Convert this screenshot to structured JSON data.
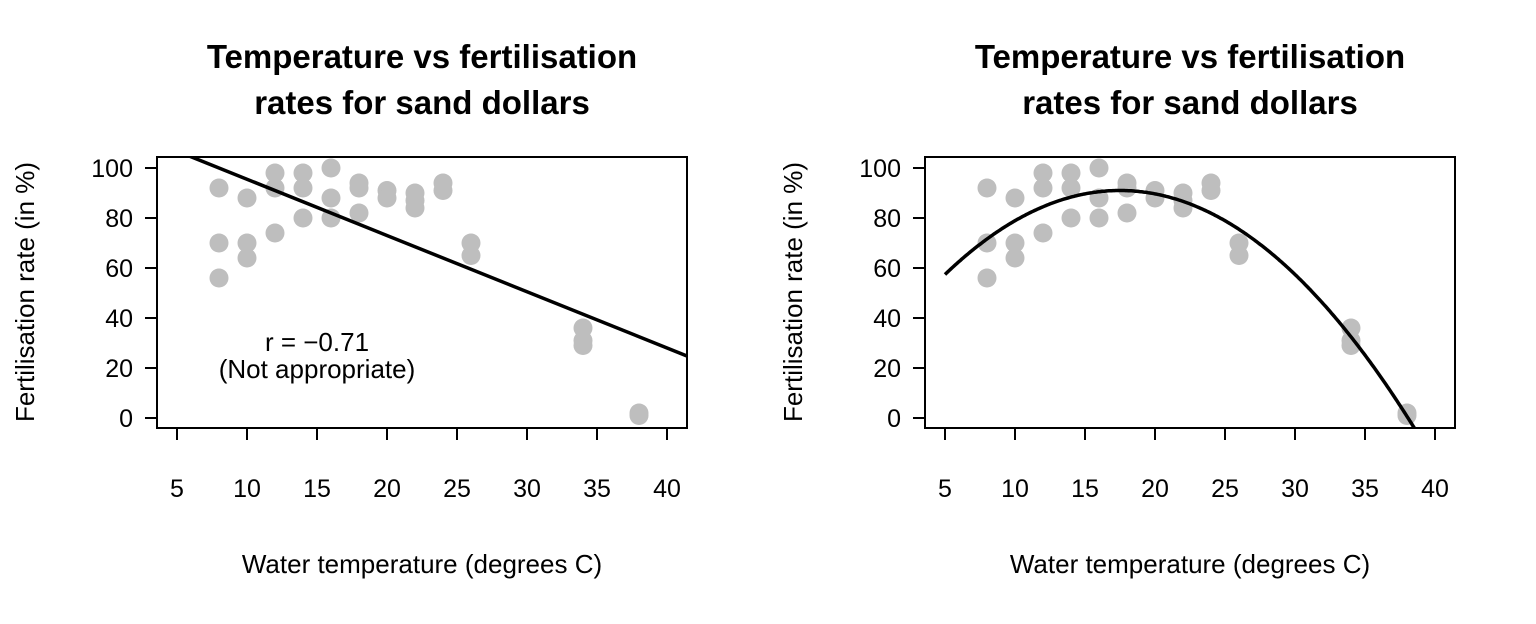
{
  "chart_data": [
    {
      "type": "scatter",
      "title": [
        "Temperature vs fertilisation",
        "rates for sand dollars"
      ],
      "xlabel": "Water temperature (degrees C)",
      "ylabel": "Fertilisation rate (in %)",
      "xticks": [
        5,
        10,
        15,
        20,
        25,
        30,
        35,
        40
      ],
      "yticks": [
        0,
        20,
        40,
        60,
        80,
        100
      ],
      "xlim": [
        3.6,
        41.4
      ],
      "ylim": [
        -4,
        104.4
      ],
      "grid": false,
      "point_color": "#bebebe",
      "fit": {
        "type": "linear",
        "intercept": 118,
        "slope": -2.25,
        "color": "#000000"
      },
      "annotation": {
        "r_label": "r = −0.71",
        "note": "(Not appropriate)"
      },
      "points": {
        "x": [
          8,
          8,
          8,
          10,
          10,
          10,
          12,
          12,
          12,
          14,
          14,
          14,
          16,
          16,
          16,
          18,
          18,
          18,
          20,
          20,
          22,
          22,
          22,
          24,
          24,
          26,
          26,
          34,
          34,
          34,
          38,
          38
        ],
        "y": [
          92,
          70,
          56,
          88,
          70,
          64,
          98,
          92,
          74,
          98,
          92,
          80,
          100,
          88,
          80,
          94,
          92,
          82,
          91,
          88,
          90,
          87,
          84,
          94,
          91,
          70,
          65,
          36,
          31,
          29,
          2,
          1
        ]
      }
    },
    {
      "type": "scatter",
      "title": [
        "Temperature vs fertilisation",
        "rates for sand dollars"
      ],
      "xlabel": "Water temperature (degrees C)",
      "ylabel": "Fertilisation rate (in %)",
      "xticks": [
        5,
        10,
        15,
        20,
        25,
        30,
        35,
        40
      ],
      "yticks": [
        0,
        20,
        40,
        60,
        80,
        100
      ],
      "xlim": [
        3.6,
        41.4
      ],
      "ylim": [
        -4,
        104.4
      ],
      "grid": false,
      "point_color": "#bebebe",
      "fit": {
        "type": "quadratic",
        "vertex_x": 17.5,
        "vertex_y": 91,
        "a": -0.215,
        "from_x": 5,
        "color": "#000000"
      },
      "points": {
        "x": [
          8,
          8,
          8,
          10,
          10,
          10,
          12,
          12,
          12,
          14,
          14,
          14,
          16,
          16,
          16,
          18,
          18,
          18,
          20,
          20,
          22,
          22,
          22,
          24,
          24,
          26,
          26,
          34,
          34,
          34,
          38,
          38
        ],
        "y": [
          92,
          70,
          56,
          88,
          70,
          64,
          98,
          92,
          74,
          98,
          92,
          80,
          100,
          88,
          80,
          94,
          92,
          82,
          91,
          88,
          90,
          87,
          84,
          94,
          91,
          70,
          65,
          36,
          31,
          29,
          2,
          1
        ]
      }
    }
  ]
}
